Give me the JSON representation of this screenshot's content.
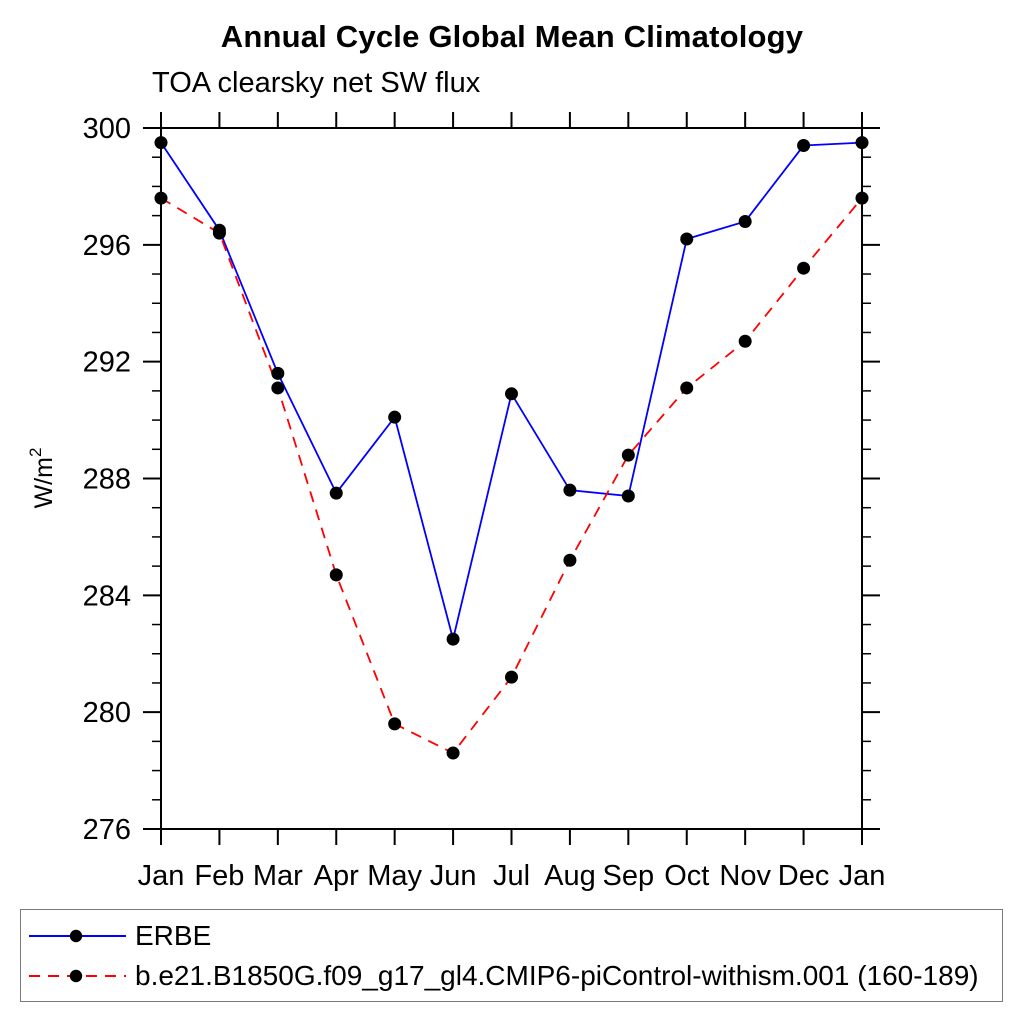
{
  "chart_data": {
    "type": "line",
    "title": "Annual Cycle Global Mean Climatology",
    "subtitle": "TOA clearsky net SW flux",
    "ylabel": "W/m²",
    "ylabel_parts": {
      "base": "W/m",
      "sup": "2"
    },
    "x_categories": [
      "Jan",
      "Feb",
      "Mar",
      "Apr",
      "May",
      "Jun",
      "Jul",
      "Aug",
      "Sep",
      "Oct",
      "Nov",
      "Dec",
      "Jan"
    ],
    "ylim": [
      276,
      300
    ],
    "ytick_major": [
      276,
      280,
      284,
      288,
      292,
      296,
      300
    ],
    "ytick_minor_step": 1,
    "grid": false,
    "legend_position": "bottom-left-box",
    "axis_color": "#000000",
    "series": [
      {
        "name": "ERBE",
        "color": "#0000ff",
        "line_style": "solid",
        "marker": "filled-circle",
        "marker_color": "#000000",
        "values": [
          299.5,
          296.5,
          291.6,
          287.5,
          290.1,
          282.5,
          290.9,
          287.6,
          287.4,
          296.2,
          296.8,
          299.4,
          299.5
        ]
      },
      {
        "name": "b.e21.B1850G.f09_g17_gl4.CMIP6-piControl-withism.001 (160-189)",
        "color": "#ff0000",
        "line_style": "dashed",
        "marker": "filled-circle",
        "marker_color": "#000000",
        "values": [
          297.6,
          296.4,
          291.1,
          284.7,
          279.6,
          278.6,
          281.2,
          285.2,
          288.8,
          291.1,
          292.7,
          295.2,
          297.6
        ]
      }
    ]
  }
}
